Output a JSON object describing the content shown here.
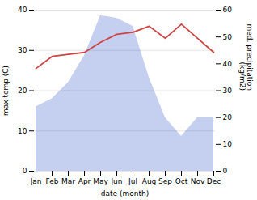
{
  "chart_data": {
    "type": "line",
    "categories": [
      "Jan",
      "Feb",
      "Mar",
      "Apr",
      "May",
      "Jun",
      "Jul",
      "Aug",
      "Sep",
      "Oct",
      "Nov",
      "Dec"
    ],
    "xlabel": "date (month)",
    "ylabel": "max temp (C)",
    "y2label": "med. precipitation\n(kg/m2)",
    "series": [
      {
        "type": "area",
        "axis": "y2",
        "color": "#c5cff0",
        "values": [
          24,
          27,
          33,
          43,
          58,
          57,
          54,
          35,
          20,
          13,
          20,
          20
        ]
      },
      {
        "type": "line",
        "color": "#cc4444",
        "values": [
          25.5,
          28.5,
          29.0,
          29.5,
          32.0,
          34.0,
          34.5,
          36.0,
          33.0,
          36.5,
          33.0,
          29.5
        ]
      }
    ],
    "ylim": [
      0,
      40
    ],
    "yticks": [
      0,
      10,
      20,
      30,
      40
    ],
    "y2lim": [
      0,
      60
    ],
    "y2ticks": [
      0,
      10,
      20,
      30,
      40,
      50,
      60
    ],
    "grid": true
  }
}
